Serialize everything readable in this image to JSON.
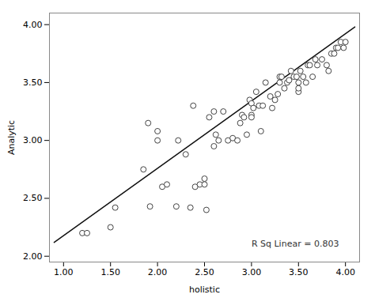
{
  "chart_data": {
    "type": "scatter",
    "xlabel": "holistic",
    "ylabel": "Analytic",
    "xlim": [
      0.85,
      4.15
    ],
    "ylim": [
      1.95,
      4.1
    ],
    "xticks": [
      {
        "value": 1.0,
        "label": "1.00"
      },
      {
        "value": 1.5,
        "label": "1.50"
      },
      {
        "value": 2.0,
        "label": "2.00"
      },
      {
        "value": 2.5,
        "label": "2.50"
      },
      {
        "value": 3.0,
        "label": "3.00"
      },
      {
        "value": 3.5,
        "label": "3.50"
      },
      {
        "value": 4.0,
        "label": "4.00"
      }
    ],
    "yticks": [
      {
        "value": 2.0,
        "label": "2.00"
      },
      {
        "value": 2.5,
        "label": "2.50"
      },
      {
        "value": 3.0,
        "label": "3.00"
      },
      {
        "value": 3.5,
        "label": "3.50"
      },
      {
        "value": 4.0,
        "label": "4.00"
      }
    ],
    "grid": false,
    "annotations": [
      {
        "text": "R Sq Linear = 0.803",
        "x": 3.0,
        "y": 2.08
      }
    ],
    "series": [
      {
        "type": "scatter",
        "marker": "circle",
        "color": "#444444",
        "x": [
          1.2,
          1.25,
          1.5,
          1.55,
          1.85,
          1.9,
          1.92,
          2.0,
          2.0,
          2.05,
          2.1,
          2.2,
          2.22,
          2.3,
          2.35,
          2.38,
          2.4,
          2.45,
          2.5,
          2.5,
          2.52,
          2.55,
          2.6,
          2.6,
          2.62,
          2.65,
          2.7,
          2.75,
          2.8,
          2.85,
          2.88,
          2.9,
          2.92,
          2.95,
          2.98,
          3.0,
          3.0,
          3.0,
          3.02,
          3.05,
          3.08,
          3.1,
          3.12,
          3.15,
          3.2,
          3.22,
          3.25,
          3.28,
          3.3,
          3.3,
          3.32,
          3.35,
          3.38,
          3.4,
          3.42,
          3.45,
          3.48,
          3.5,
          3.5,
          3.5,
          3.52,
          3.55,
          3.58,
          3.6,
          3.62,
          3.65,
          3.68,
          3.7,
          3.75,
          3.8,
          3.82,
          3.85,
          3.88,
          3.9,
          3.92,
          3.95,
          3.98,
          4.0
        ],
        "values": [
          2.2,
          2.2,
          2.25,
          2.42,
          2.75,
          3.15,
          2.43,
          3.08,
          3.0,
          2.6,
          2.62,
          2.43,
          3.0,
          2.88,
          2.42,
          3.3,
          2.6,
          2.62,
          2.62,
          2.67,
          2.4,
          3.2,
          3.25,
          2.95,
          3.05,
          3.0,
          3.25,
          3.0,
          3.02,
          3.0,
          3.15,
          3.22,
          3.2,
          3.05,
          3.35,
          3.22,
          3.2,
          3.32,
          3.28,
          3.42,
          3.3,
          3.08,
          3.3,
          3.5,
          3.38,
          3.28,
          3.35,
          3.4,
          3.55,
          3.5,
          3.55,
          3.45,
          3.5,
          3.52,
          3.6,
          3.55,
          3.55,
          3.42,
          3.5,
          3.45,
          3.6,
          3.55,
          3.5,
          3.65,
          3.65,
          3.55,
          3.7,
          3.65,
          3.7,
          3.65,
          3.6,
          3.75,
          3.75,
          3.8,
          3.8,
          3.85,
          3.8,
          3.85
        ]
      },
      {
        "type": "line",
        "line_style": "solid",
        "color": "#111111",
        "x": [
          0.9,
          4.1
        ],
        "values": [
          2.12,
          3.98
        ]
      }
    ]
  }
}
